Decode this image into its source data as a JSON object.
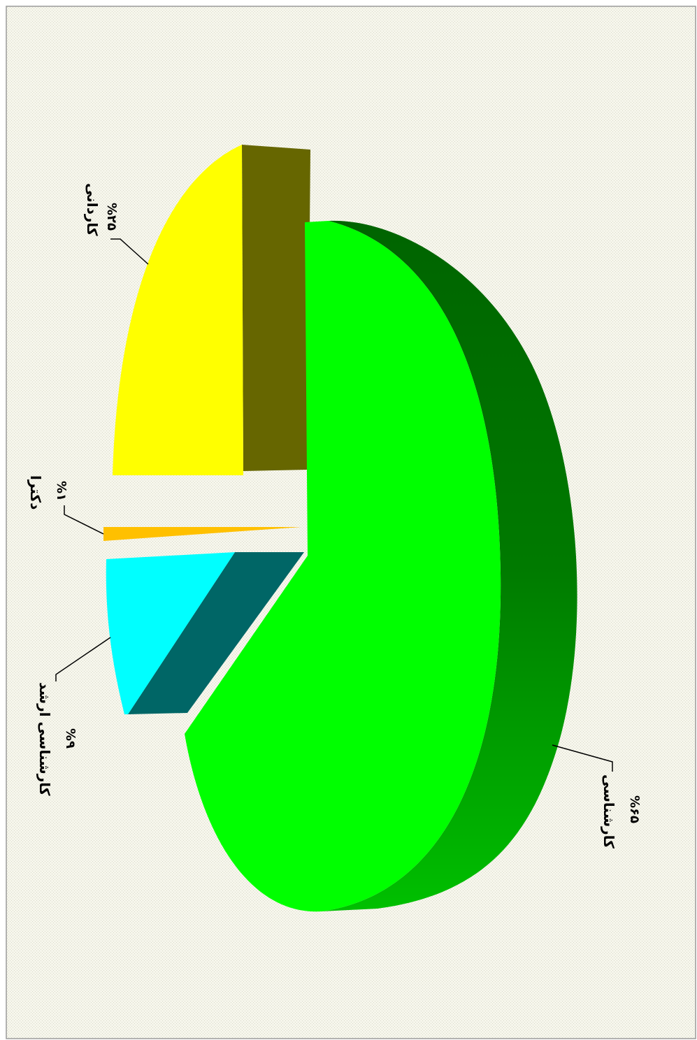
{
  "chart_data": {
    "type": "pie",
    "style": "3d-exploded",
    "orientation": "rotated-90-clockwise",
    "legend": "none",
    "categories": [
      "کاردانی",
      "دکترا",
      "کارشناسی ارشد",
      "کارشناسی"
    ],
    "values": [
      25,
      1,
      9,
      65
    ],
    "value_labels": [
      "%۲۵",
      "%۱",
      "%۹",
      "%۶۵"
    ],
    "colors": {
      "top": [
        "#ffff00",
        "#ffc000",
        "#00ffff",
        "#00ff00"
      ],
      "side": [
        "#666600",
        "#b37700",
        "#006666",
        "#00aa00"
      ]
    }
  }
}
